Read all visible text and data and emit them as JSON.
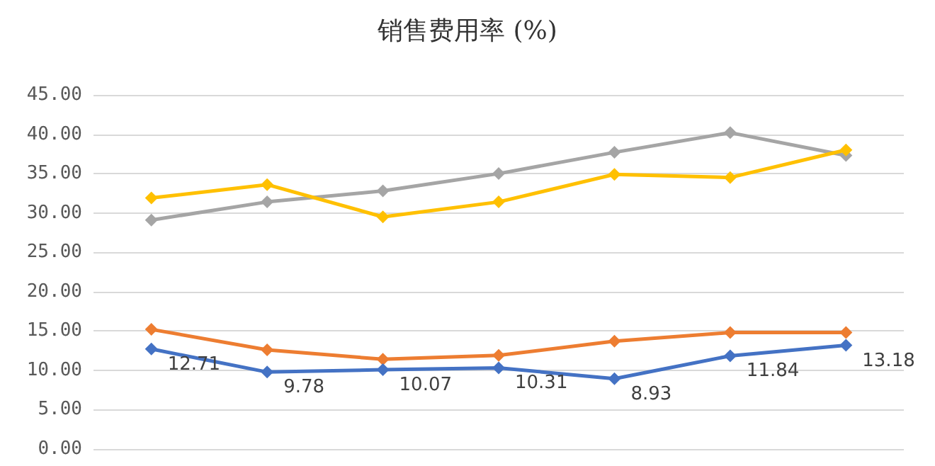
{
  "chart_data": {
    "type": "line",
    "title": "销售费用率 (%)",
    "categories": [
      null,
      null,
      null,
      null,
      null,
      null,
      null
    ],
    "series": [
      {
        "color": "#a5a5a5",
        "values": [
          29.1,
          31.4,
          32.8,
          35.0,
          37.7,
          40.2,
          37.3
        ]
      },
      {
        "color": "#ffc000",
        "values": [
          31.9,
          33.6,
          29.5,
          31.4,
          34.9,
          34.5,
          38.0
        ]
      },
      {
        "color": "#ed7d31",
        "values": [
          15.2,
          12.6,
          11.4,
          11.9,
          13.7,
          14.8,
          14.8
        ]
      },
      {
        "color": "#4472c4",
        "values": [
          12.71,
          9.78,
          10.07,
          10.31,
          8.93,
          11.84,
          13.18
        ],
        "value_labels": [
          "12.71",
          "9.78",
          "10.07",
          "10.31",
          "8.93",
          "11.84",
          "13.18"
        ]
      }
    ],
    "ylim": [
      0,
      45
    ],
    "yticks": [
      {
        "value": 0,
        "label": "0.00"
      },
      {
        "value": 5,
        "label": "5.00"
      },
      {
        "value": 10,
        "label": "10.00"
      },
      {
        "value": 15,
        "label": "15.00"
      },
      {
        "value": 20,
        "label": "20.00"
      },
      {
        "value": 25,
        "label": "25.00"
      },
      {
        "value": 30,
        "label": "30.00"
      },
      {
        "value": 35,
        "label": "35.00"
      },
      {
        "value": 40,
        "label": "40.00"
      },
      {
        "value": 45,
        "label": "45.00"
      }
    ],
    "grid": "y",
    "marker": "diamond",
    "line_style": "solid"
  }
}
